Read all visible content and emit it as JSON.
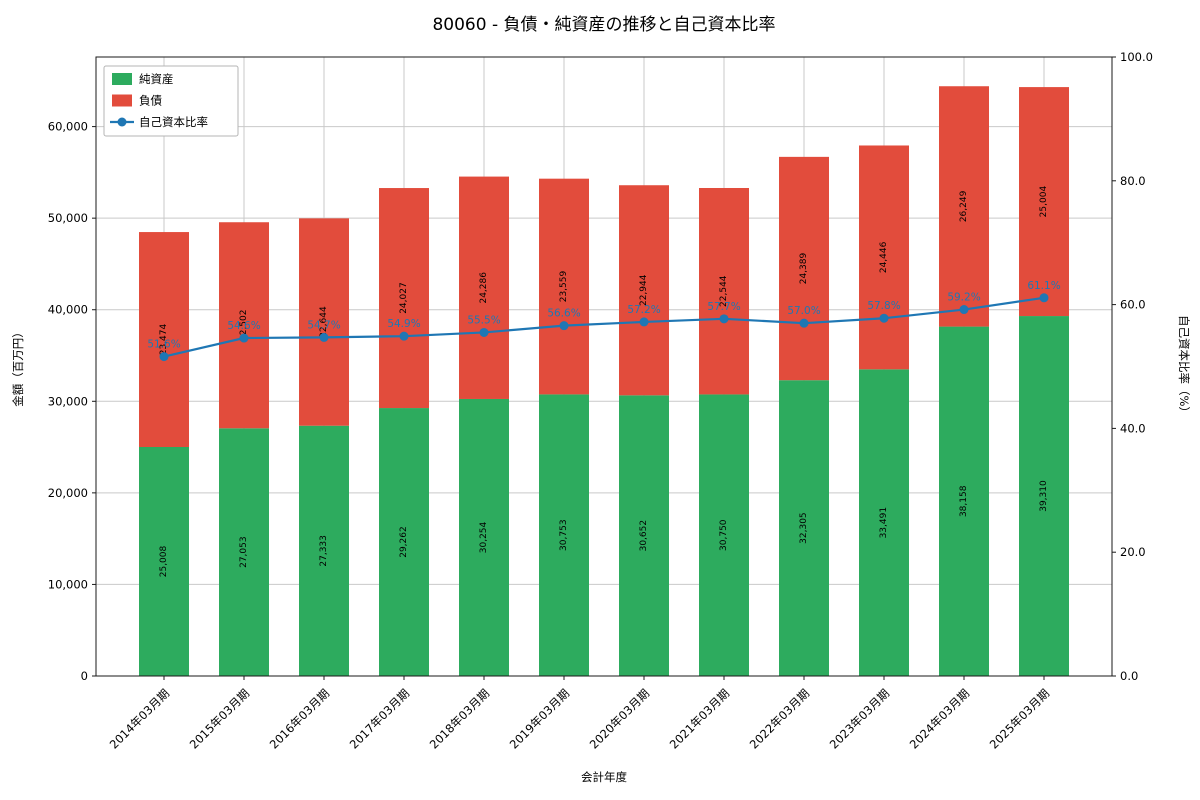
{
  "title": "80060 - 負債・純資産の推移と自己資本比率",
  "chart_data": {
    "type": "bar",
    "stacked": true,
    "title": "80060 - 負債・純資産の推移と自己資本比率",
    "xlabel": "会計年度",
    "ylabel_left": "金額（百万円）",
    "ylabel_right": "自己資本比率（%）",
    "categories": [
      "2014年03月期",
      "2015年03月期",
      "2016年03月期",
      "2017年03月期",
      "2018年03月期",
      "2019年03月期",
      "2020年03月期",
      "2021年03月期",
      "2022年03月期",
      "2023年03月期",
      "2024年03月期",
      "2025年03月期"
    ],
    "series": [
      {
        "key": "net-assets",
        "name": "純資産",
        "type": "bar",
        "axis": "left",
        "color": "#2dab5e",
        "values": [
          25008,
          27053,
          27333,
          29262,
          30254,
          30753,
          30652,
          30750,
          32305,
          33491,
          38158,
          39310
        ]
      },
      {
        "key": "liabilities",
        "name": "負債",
        "type": "bar",
        "axis": "left",
        "color": "#e24c3c",
        "values": [
          23474,
          22502,
          22644,
          24027,
          24286,
          23559,
          22944,
          22544,
          24389,
          24446,
          26249,
          25004
        ]
      },
      {
        "key": "equity-ratio",
        "name": "自己資本比率",
        "type": "line",
        "axis": "right",
        "color": "#1f77b4",
        "unit": "%",
        "values": [
          51.6,
          54.6,
          54.7,
          54.9,
          55.5,
          56.6,
          57.2,
          57.7,
          57.0,
          57.8,
          59.2,
          61.1
        ]
      }
    ],
    "ylim_left": [
      0,
      67600
    ],
    "yticks_left": [
      0,
      10000,
      20000,
      30000,
      40000,
      50000,
      60000
    ],
    "ylim_right": [
      0,
      100
    ],
    "yticks_right": [
      0,
      20,
      40,
      60,
      80,
      100
    ],
    "grid": true,
    "legend_position": "upper left"
  }
}
